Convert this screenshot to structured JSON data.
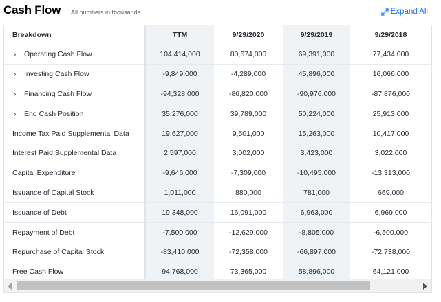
{
  "header": {
    "title": "Cash Flow",
    "subtitle": "All numbers in thousands",
    "expand_label": "Expand All",
    "expand_icon": "expand-arrows-icon"
  },
  "colors": {
    "accent": "#0f69ff",
    "shaded_column": "#f0f3f5",
    "text": "#232a31"
  },
  "table": {
    "columns": [
      "Breakdown",
      "TTM",
      "9/29/2020",
      "9/29/2019",
      "9/29/2018"
    ],
    "rows": [
      {
        "label": "Operating Cash Flow",
        "expandable": true,
        "values": [
          "104,414,000",
          "80,674,000",
          "69,391,000",
          "77,434,000"
        ]
      },
      {
        "label": "Investing Cash Flow",
        "expandable": true,
        "values": [
          "-9,849,000",
          "-4,289,000",
          "45,896,000",
          "16,066,000"
        ]
      },
      {
        "label": "Financing Cash Flow",
        "expandable": true,
        "values": [
          "-94,328,000",
          "-86,820,000",
          "-90,976,000",
          "-87,876,000"
        ]
      },
      {
        "label": "End Cash Position",
        "expandable": true,
        "values": [
          "35,276,000",
          "39,789,000",
          "50,224,000",
          "25,913,000"
        ]
      },
      {
        "label": "Income Tax Paid Supplemental Data",
        "expandable": false,
        "values": [
          "19,627,000",
          "9,501,000",
          "15,263,000",
          "10,417,000"
        ]
      },
      {
        "label": "Interest Paid Supplemental Data",
        "expandable": false,
        "values": [
          "2,597,000",
          "3,002,000",
          "3,423,000",
          "3,022,000"
        ]
      },
      {
        "label": "Capital Expenditure",
        "expandable": false,
        "values": [
          "-9,646,000",
          "-7,309,000",
          "-10,495,000",
          "-13,313,000"
        ]
      },
      {
        "label": "Issuance of Capital Stock",
        "expandable": false,
        "values": [
          "1,011,000",
          "880,000",
          "781,000",
          "669,000"
        ]
      },
      {
        "label": "Issuance of Debt",
        "expandable": false,
        "values": [
          "19,348,000",
          "16,091,000",
          "6,963,000",
          "6,969,000"
        ]
      },
      {
        "label": "Repayment of Debt",
        "expandable": false,
        "values": [
          "-7,500,000",
          "-12,629,000",
          "-8,805,000",
          "-6,500,000"
        ]
      },
      {
        "label": "Repurchase of Capital Stock",
        "expandable": false,
        "values": [
          "-83,410,000",
          "-72,358,000",
          "-66,897,000",
          "-72,738,000"
        ]
      },
      {
        "label": "Free Cash Flow",
        "expandable": false,
        "values": [
          "94,768,000",
          "73,365,000",
          "58,896,000",
          "64,121,000"
        ]
      }
    ]
  },
  "scrollbar": {
    "left_icon": "scroll-left-icon",
    "right_icon": "scroll-right-icon"
  }
}
